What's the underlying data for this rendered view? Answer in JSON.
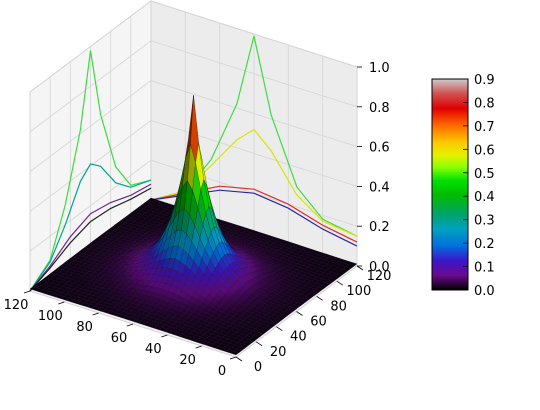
{
  "chart_data": {
    "type": "surface3d",
    "title": "",
    "xlabel": "",
    "ylabel": "",
    "zlabel": "",
    "x_ticks": [
      "0",
      "20",
      "40",
      "60",
      "80",
      "100",
      "120"
    ],
    "y_ticks": [
      "0",
      "20",
      "40",
      "60",
      "80",
      "100",
      "120"
    ],
    "z_ticks": [
      "0.0",
      "0.2",
      "0.4",
      "0.6",
      "0.8",
      "1.0"
    ],
    "xlim": [
      0,
      120
    ],
    "ylim": [
      0,
      120
    ],
    "zlim": [
      0,
      1.0
    ],
    "grid": true,
    "surface": {
      "peak_x": 60,
      "peak_y": 60,
      "peak_z": 0.92,
      "floor_z": 0.01
    },
    "projections": {
      "back_left_wall": [
        {
          "color": "#3ddc3d",
          "points": [
            [
              0,
              0.0
            ],
            [
              20,
              0.08
            ],
            [
              35,
              0.3
            ],
            [
              50,
              0.62
            ],
            [
              60,
              0.98
            ],
            [
              70,
              0.62
            ],
            [
              85,
              0.3
            ],
            [
              100,
              0.15
            ],
            [
              120,
              0.1
            ]
          ]
        },
        {
          "color": "#00a58c",
          "points": [
            [
              0,
              0.0
            ],
            [
              20,
              0.07
            ],
            [
              35,
              0.2
            ],
            [
              50,
              0.36
            ],
            [
              60,
              0.41
            ],
            [
              70,
              0.36
            ],
            [
              85,
              0.22
            ],
            [
              100,
              0.14
            ],
            [
              120,
              0.1
            ]
          ]
        },
        {
          "color": "#6b2a9e",
          "points": [
            [
              0,
              0.0
            ],
            [
              20,
              0.05
            ],
            [
              40,
              0.12
            ],
            [
              60,
              0.16
            ],
            [
              80,
              0.14
            ],
            [
              100,
              0.1
            ],
            [
              120,
              0.08
            ]
          ]
        },
        {
          "color": "#222222",
          "points": [
            [
              0,
              0.0
            ],
            [
              20,
              0.04
            ],
            [
              40,
              0.09
            ],
            [
              60,
              0.12
            ],
            [
              80,
              0.11
            ],
            [
              100,
              0.08
            ],
            [
              120,
              0.06
            ]
          ]
        }
      ],
      "back_right_wall": [
        {
          "color": "#3ddc3d",
          "points": [
            [
              0,
              0.15
            ],
            [
              20,
              0.18
            ],
            [
              35,
              0.3
            ],
            [
              50,
              0.62
            ],
            [
              60,
              0.99
            ],
            [
              70,
              0.62
            ],
            [
              85,
              0.3
            ],
            [
              100,
              0.1
            ],
            [
              120,
              0.0
            ]
          ]
        },
        {
          "color": "#d7e600",
          "points": [
            [
              0,
              0.15
            ],
            [
              20,
              0.17
            ],
            [
              35,
              0.26
            ],
            [
              50,
              0.44
            ],
            [
              60,
              0.52
            ],
            [
              70,
              0.44
            ],
            [
              85,
              0.27
            ],
            [
              100,
              0.1
            ],
            [
              120,
              0.0
            ]
          ]
        },
        {
          "color": "#e0302a",
          "points": [
            [
              0,
              0.12
            ],
            [
              20,
              0.15
            ],
            [
              40,
              0.2
            ],
            [
              60,
              0.22
            ],
            [
              80,
              0.18
            ],
            [
              100,
              0.09
            ],
            [
              120,
              0.0
            ]
          ]
        },
        {
          "color": "#2a2aa8",
          "points": [
            [
              0,
              0.1
            ],
            [
              20,
              0.13
            ],
            [
              40,
              0.18
            ],
            [
              60,
              0.2
            ],
            [
              80,
              0.16
            ],
            [
              100,
              0.08
            ],
            [
              120,
              0.0
            ]
          ]
        }
      ]
    },
    "colorbar": {
      "colormap": "spectral",
      "ticks": [
        "0.0",
        "0.1",
        "0.2",
        "0.3",
        "0.4",
        "0.5",
        "0.6",
        "0.7",
        "0.8",
        "0.9"
      ],
      "range": [
        0.0,
        0.9
      ]
    }
  }
}
